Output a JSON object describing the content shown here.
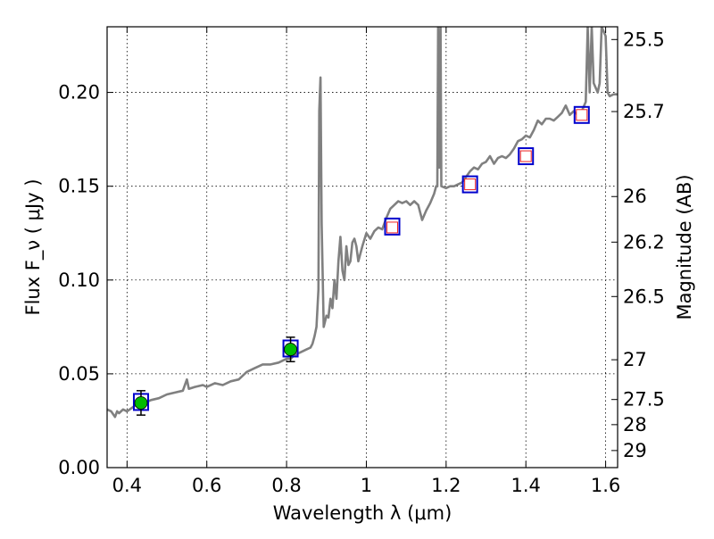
{
  "chart_data": {
    "type": "line",
    "title": "",
    "xlabel": "Wavelength  λ (μm)",
    "ylabel": "Flux  F_ν  ( μJy )",
    "y2label": "Magnitude (AB)",
    "xlim": [
      0.35,
      1.63
    ],
    "ylim": [
      0.0,
      0.235
    ],
    "grid": true,
    "legend": "none",
    "x_ticks": [
      {
        "value": 0.4,
        "label": "0.4"
      },
      {
        "value": 0.6,
        "label": "0.6"
      },
      {
        "value": 0.8,
        "label": "0.8"
      },
      {
        "value": 1.0,
        "label": "1"
      },
      {
        "value": 1.2,
        "label": "1.2"
      },
      {
        "value": 1.4,
        "label": "1.4"
      },
      {
        "value": 1.6,
        "label": "1.6"
      }
    ],
    "y_ticks": [
      {
        "value": 0.0,
        "label": "0.00"
      },
      {
        "value": 0.05,
        "label": "0.05"
      },
      {
        "value": 0.1,
        "label": "0.10"
      },
      {
        "value": 0.15,
        "label": "0.15"
      },
      {
        "value": 0.2,
        "label": "0.20"
      }
    ],
    "magnitude_ticks": [
      {
        "value": 0.2282,
        "label": "25.5"
      },
      {
        "value": 0.1898,
        "label": "25.7"
      },
      {
        "value": 0.1445,
        "label": "26"
      },
      {
        "value": 0.1202,
        "label": "26.2"
      },
      {
        "value": 0.0912,
        "label": "26.5"
      },
      {
        "value": 0.0575,
        "label": "27"
      },
      {
        "value": 0.0363,
        "label": "27.5"
      },
      {
        "value": 0.0229,
        "label": "28"
      },
      {
        "value": 0.0091,
        "label": "29"
      }
    ],
    "series": [
      {
        "kind": "spectrum",
        "color": "#808080",
        "points": [
          [
            0.35,
            0.031
          ],
          [
            0.36,
            0.03
          ],
          [
            0.37,
            0.027
          ],
          [
            0.375,
            0.03
          ],
          [
            0.38,
            0.029
          ],
          [
            0.39,
            0.031
          ],
          [
            0.4,
            0.03
          ],
          [
            0.42,
            0.033
          ],
          [
            0.44,
            0.034
          ],
          [
            0.46,
            0.036
          ],
          [
            0.48,
            0.037
          ],
          [
            0.5,
            0.039
          ],
          [
            0.52,
            0.04
          ],
          [
            0.54,
            0.041
          ],
          [
            0.55,
            0.047
          ],
          [
            0.555,
            0.042
          ],
          [
            0.57,
            0.043
          ],
          [
            0.59,
            0.044
          ],
          [
            0.6,
            0.043
          ],
          [
            0.62,
            0.045
          ],
          [
            0.64,
            0.044
          ],
          [
            0.66,
            0.046
          ],
          [
            0.68,
            0.047
          ],
          [
            0.7,
            0.051
          ],
          [
            0.72,
            0.053
          ],
          [
            0.74,
            0.055
          ],
          [
            0.76,
            0.055
          ],
          [
            0.78,
            0.056
          ],
          [
            0.79,
            0.057
          ],
          [
            0.8,
            0.058
          ],
          [
            0.81,
            0.058
          ],
          [
            0.82,
            0.06
          ],
          [
            0.83,
            0.061
          ],
          [
            0.84,
            0.062
          ],
          [
            0.85,
            0.063
          ],
          [
            0.86,
            0.064
          ],
          [
            0.865,
            0.066
          ],
          [
            0.87,
            0.07
          ],
          [
            0.875,
            0.075
          ],
          [
            0.88,
            0.095
          ],
          [
            0.882,
            0.19
          ],
          [
            0.885,
            0.208
          ],
          [
            0.888,
            0.13
          ],
          [
            0.893,
            0.075
          ],
          [
            0.9,
            0.081
          ],
          [
            0.905,
            0.08
          ],
          [
            0.91,
            0.09
          ],
          [
            0.915,
            0.085
          ],
          [
            0.92,
            0.1
          ],
          [
            0.925,
            0.09
          ],
          [
            0.93,
            0.11
          ],
          [
            0.935,
            0.123
          ],
          [
            0.94,
            0.105
          ],
          [
            0.945,
            0.1
          ],
          [
            0.95,
            0.118
          ],
          [
            0.955,
            0.108
          ],
          [
            0.96,
            0.11
          ],
          [
            0.965,
            0.12
          ],
          [
            0.97,
            0.122
          ],
          [
            0.975,
            0.118
          ],
          [
            0.98,
            0.11
          ],
          [
            0.99,
            0.118
          ],
          [
            1.0,
            0.125
          ],
          [
            1.01,
            0.122
          ],
          [
            1.02,
            0.126
          ],
          [
            1.03,
            0.128
          ],
          [
            1.04,
            0.127
          ],
          [
            1.05,
            0.133
          ],
          [
            1.06,
            0.138
          ],
          [
            1.07,
            0.14
          ],
          [
            1.08,
            0.142
          ],
          [
            1.09,
            0.141
          ],
          [
            1.1,
            0.142
          ],
          [
            1.11,
            0.14
          ],
          [
            1.12,
            0.142
          ],
          [
            1.13,
            0.14
          ],
          [
            1.14,
            0.132
          ],
          [
            1.15,
            0.137
          ],
          [
            1.16,
            0.141
          ],
          [
            1.17,
            0.146
          ],
          [
            1.175,
            0.15
          ],
          [
            1.178,
            0.15
          ],
          [
            1.18,
            0.235
          ],
          [
            1.183,
            0.16
          ],
          [
            1.186,
            0.235
          ],
          [
            1.188,
            0.15
          ],
          [
            1.2,
            0.149
          ],
          [
            1.21,
            0.15
          ],
          [
            1.22,
            0.15
          ],
          [
            1.23,
            0.151
          ],
          [
            1.24,
            0.152
          ],
          [
            1.25,
            0.155
          ],
          [
            1.26,
            0.158
          ],
          [
            1.27,
            0.16
          ],
          [
            1.28,
            0.159
          ],
          [
            1.29,
            0.162
          ],
          [
            1.3,
            0.163
          ],
          [
            1.31,
            0.166
          ],
          [
            1.32,
            0.162
          ],
          [
            1.33,
            0.165
          ],
          [
            1.34,
            0.166
          ],
          [
            1.35,
            0.165
          ],
          [
            1.36,
            0.167
          ],
          [
            1.37,
            0.17
          ],
          [
            1.38,
            0.174
          ],
          [
            1.39,
            0.175
          ],
          [
            1.4,
            0.177
          ],
          [
            1.41,
            0.176
          ],
          [
            1.42,
            0.18
          ],
          [
            1.43,
            0.185
          ],
          [
            1.44,
            0.183
          ],
          [
            1.45,
            0.186
          ],
          [
            1.46,
            0.186
          ],
          [
            1.47,
            0.185
          ],
          [
            1.48,
            0.187
          ],
          [
            1.49,
            0.189
          ],
          [
            1.5,
            0.193
          ],
          [
            1.51,
            0.188
          ],
          [
            1.52,
            0.19
          ],
          [
            1.53,
            0.188
          ],
          [
            1.54,
            0.19
          ],
          [
            1.55,
            0.195
          ],
          [
            1.555,
            0.235
          ],
          [
            1.56,
            0.2
          ],
          [
            1.565,
            0.235
          ],
          [
            1.57,
            0.205
          ],
          [
            1.58,
            0.2
          ],
          [
            1.585,
            0.205
          ],
          [
            1.59,
            0.235
          ],
          [
            1.6,
            0.23
          ],
          [
            1.605,
            0.2
          ],
          [
            1.61,
            0.198
          ],
          [
            1.62,
            0.199
          ],
          [
            1.63,
            0.199
          ]
        ]
      },
      {
        "kind": "model_photometry",
        "marker": "square",
        "color": "#0000cc",
        "points": [
          [
            0.435,
            0.035
          ],
          [
            0.81,
            0.0635
          ],
          [
            1.065,
            0.1285
          ],
          [
            1.26,
            0.151
          ],
          [
            1.4,
            0.166
          ],
          [
            1.54,
            0.188
          ]
        ]
      },
      {
        "kind": "detections",
        "marker": "circle",
        "color": "#00bb00",
        "points": [
          {
            "x": 0.435,
            "y": 0.0345,
            "yerr": 0.0065
          },
          {
            "x": 0.81,
            "y": 0.063,
            "yerr": 0.0065
          }
        ]
      },
      {
        "kind": "upper_limits",
        "marker": "square",
        "color": "#ee2222",
        "points": [
          [
            1.065,
            0.128
          ],
          [
            1.26,
            0.151
          ],
          [
            1.4,
            0.166
          ],
          [
            1.54,
            0.188
          ]
        ]
      }
    ]
  }
}
